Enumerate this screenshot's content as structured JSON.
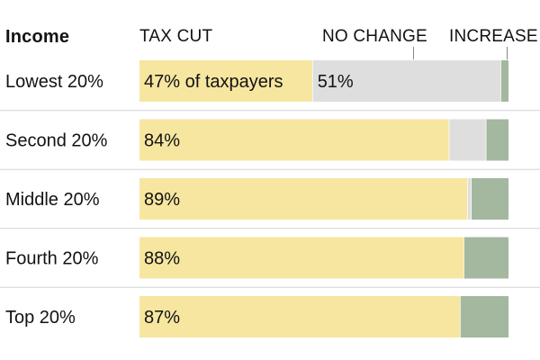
{
  "chart_data": {
    "type": "bar",
    "stacked": true,
    "orientation": "horizontal",
    "row_header": "Income",
    "series": [
      {
        "name": "TAX CUT",
        "color": "#f6e6a0",
        "values": [
          47,
          84,
          89,
          88,
          87
        ]
      },
      {
        "name": "NO CHANGE",
        "color": "#dedede",
        "values": [
          51,
          10,
          1,
          0,
          0
        ]
      },
      {
        "name": "INCREASE",
        "color": "#a3b89f",
        "values": [
          2,
          6,
          10,
          12,
          13
        ]
      }
    ],
    "categories": [
      "Lowest 20%",
      "Second 20%",
      "Middle 20%",
      "Fourth 20%",
      "Top 20%"
    ],
    "data_labels": [
      {
        "row": 0,
        "series": 0,
        "text": "47% of taxpayers"
      },
      {
        "row": 0,
        "series": 1,
        "text": "51%"
      },
      {
        "row": 1,
        "series": 0,
        "text": "84%"
      },
      {
        "row": 2,
        "series": 0,
        "text": "89%"
      },
      {
        "row": 3,
        "series": 0,
        "text": "88%"
      },
      {
        "row": 4,
        "series": 0,
        "text": "87%"
      }
    ],
    "xlim": [
      0,
      100
    ],
    "row_dividers": true
  }
}
